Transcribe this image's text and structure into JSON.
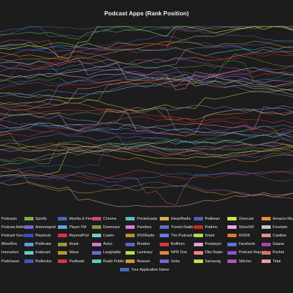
{
  "chart_data": {
    "type": "line",
    "title": "Podcast Apps (Rank Position)",
    "xlabel": "",
    "ylabel": "",
    "grid": false,
    "legend_position": "bottom",
    "x": [],
    "legend": [
      [
        {
          "name": "Podcasts",
          "color": "#3c6ea8"
        },
        {
          "name": "Spotify",
          "color": "#7cb342"
        },
        {
          "name": "Mozilla & Firefox",
          "color": "#3b6fb5"
        },
        {
          "name": "Chrome",
          "color": "#d4408f"
        },
        {
          "name": "Pocketcasts",
          "color": "#4fc3c8"
        },
        {
          "name": "iHeartRadio",
          "color": "#d6b340"
        },
        {
          "name": "Podbean",
          "color": "#4a5ecf"
        },
        {
          "name": "Overcast",
          "color": "#c9ec4a"
        },
        {
          "name": "Amazon Music",
          "color": "#f08c2c"
        }
      ],
      [
        {
          "name": "Podcast Addict",
          "color": "#f07878"
        },
        {
          "name": "Antennapod",
          "color": "#7a5fd6"
        },
        {
          "name": "Player FM",
          "color": "#58a8e8"
        },
        {
          "name": "Downcast",
          "color": "#8a9438"
        },
        {
          "name": "Pandora",
          "color": "#e07ad0"
        },
        {
          "name": "TuneIn Radio",
          "color": "#5e70c8"
        },
        {
          "name": "Podimo",
          "color": "#d02828"
        },
        {
          "name": "SiriusXM",
          "color": "#e8a8e8"
        },
        {
          "name": "Fountain",
          "color": "#c8c8c8"
        }
      ],
      [
        {
          "name": "Podcast Guru",
          "color": "#3a9e3a"
        },
        {
          "name": "Playbook",
          "color": "#3050c0"
        },
        {
          "name": "BeyondPod",
          "color": "#e03040"
        },
        {
          "name": "Castro",
          "color": "#6ad0c8"
        },
        {
          "name": "RSSRadio",
          "color": "#c09020"
        },
        {
          "name": "The Podcast App",
          "color": "#6878e0"
        },
        {
          "name": "Snipd",
          "color": "#b8d838"
        },
        {
          "name": "RSSiN",
          "color": "#e07830"
        },
        {
          "name": "Castbox",
          "color": "#e89090"
        }
      ],
      [
        {
          "name": "MixerBox",
          "color": "#8a5ad8"
        },
        {
          "name": "Podbrake",
          "color": "#5aa0e0"
        },
        {
          "name": "Acast",
          "color": "#9a9a3a"
        },
        {
          "name": "Axios",
          "color": "#d878c8"
        },
        {
          "name": "Breaker",
          "color": "#5a6ac0"
        },
        {
          "name": "Bullhorn",
          "color": "#d83838"
        },
        {
          "name": "Pexplayer",
          "color": "#e8a0d0"
        },
        {
          "name": "Facebook",
          "color": "#5a78d8"
        },
        {
          "name": "Gaana",
          "color": "#a848a8"
        }
      ],
      [
        {
          "name": "Innovative",
          "color": "#d03038"
        },
        {
          "name": "Instacast",
          "color": "#68c8c0"
        },
        {
          "name": "Wave",
          "color": "#b89828"
        },
        {
          "name": "Laughable",
          "color": "#6070d8"
        },
        {
          "name": "Luminary",
          "color": "#b8e040"
        },
        {
          "name": "NPR One",
          "color": "#e08838"
        },
        {
          "name": "Otto Radio",
          "color": "#e88888"
        },
        {
          "name": "Podcast Republic",
          "color": "#8858c8"
        },
        {
          "name": "Pocket",
          "color": "#e07070"
        }
      ],
      [
        {
          "name": "Podchaser",
          "color": "#4ab040"
        },
        {
          "name": "Podkicker",
          "color": "#3a5ac0"
        },
        {
          "name": "Podtrade",
          "color": "#d83838"
        },
        {
          "name": "Radio Public",
          "color": "#60c8c8"
        },
        {
          "name": "Reason",
          "color": "#c89a30"
        },
        {
          "name": "Sebu",
          "color": "#6a6ad8"
        },
        {
          "name": "Samsung",
          "color": "#c8e048"
        },
        {
          "name": "Stitcher",
          "color": "#a858b8"
        },
        {
          "name": "Tidal",
          "color": "#e8a0a0"
        }
      ],
      [
        {
          "name": "Your Application Name",
          "color": "#4a6ab8"
        }
      ]
    ],
    "series": [],
    "values_note": ""
  }
}
